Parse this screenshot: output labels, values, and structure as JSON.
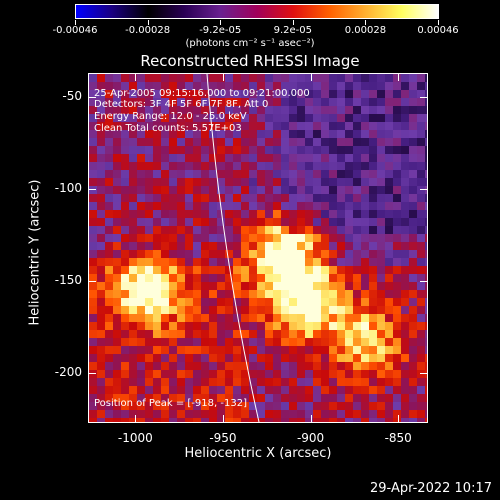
{
  "colorbar": {
    "tick_labels": [
      "-0.00046",
      "-0.00028",
      "-9.2e-05",
      "9.2e-05",
      "0.00028",
      "0.00046"
    ],
    "units": "(photons cm⁻² s⁻¹ asec⁻²)",
    "colormap": [
      "#0000ff",
      "#1a0080",
      "#000000",
      "#2a0055",
      "#6a2090",
      "#a0005a",
      "#e01010",
      "#ff6000",
      "#ffb030",
      "#ffff60",
      "#ffffff"
    ]
  },
  "plot": {
    "title": "Reconstructed RHESSI Image",
    "annotations": {
      "time": "25-Apr-2005 09:15:16.000 to 09:21:00.000",
      "detectors": "Detectors: 3F 4F 5F 6F 7F 8F, Att 0",
      "energy": "Energy Range: 12.0 - 25.0 keV",
      "clean": "Clean     Total counts: 5.57E+03",
      "peak": "Position of Peak = [-918, -132]"
    },
    "xlabel": "Heliocentric X (arcsec)",
    "ylabel": "Heliocentric Y (arcsec)",
    "x_ticks": [
      "-1000",
      "-950",
      "-900",
      "-850"
    ],
    "y_ticks": [
      "-50",
      "-100",
      "-150",
      "-200"
    ]
  },
  "chart_data": {
    "type": "heatmap",
    "title": "Reconstructed RHESSI Image",
    "xlabel": "Heliocentric X (arcsec)",
    "ylabel": "Heliocentric Y (arcsec)",
    "xlim": [
      -1027,
      -833
    ],
    "ylim": [
      -227,
      -37
    ],
    "x_ticks": [
      -1000,
      -950,
      -900,
      -850
    ],
    "y_ticks": [
      -50,
      -100,
      -150,
      -200
    ],
    "colorbar_range": [
      -0.00046,
      0.00046
    ],
    "peak": [
      -918,
      -132
    ],
    "hotspots": [
      {
        "x": -918,
        "y": -132,
        "level": 1.0
      },
      {
        "x": -905,
        "y": -160,
        "level": 0.8
      },
      {
        "x": -995,
        "y": -153,
        "level": 0.75
      },
      {
        "x": -870,
        "y": -180,
        "level": 0.6
      }
    ]
  },
  "footer": {
    "datestamp": "29-Apr-2022 10:17"
  }
}
